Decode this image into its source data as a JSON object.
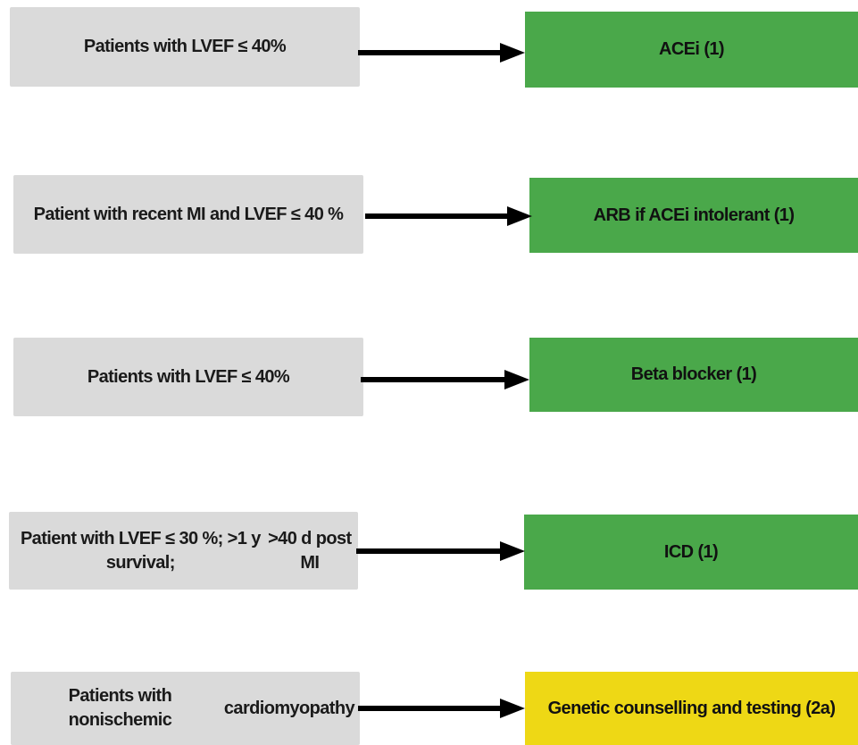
{
  "colors": {
    "condition_fill": "#dadada",
    "class1_fill": "#4aa84a",
    "class2a_fill": "#eed815",
    "arrow": "#000000"
  },
  "rows": [
    {
      "condition": [
        "Patients with LVEF  ≤  40%"
      ],
      "recommendation": "ACEi (1)",
      "class": "1"
    },
    {
      "condition": [
        "Patient with recent MI and LVEF ≤ 40 %"
      ],
      "recommendation": "ARB if ACEi intolerant (1)",
      "class": "1"
    },
    {
      "condition": [
        "Patients with LVEF  ≤  40%"
      ],
      "recommendation": "Beta blocker (1)",
      "class": "1"
    },
    {
      "condition": [
        "Patient with LVEF ≤ 30 %; >1 y survival;",
        ">40 d post MI"
      ],
      "recommendation": "ICD (1)",
      "class": "1"
    },
    {
      "condition": [
        "Patients with nonischemic",
        "cardiomyopathy"
      ],
      "recommendation": "Genetic counselling and testing (2a)",
      "class": "2a"
    }
  ]
}
